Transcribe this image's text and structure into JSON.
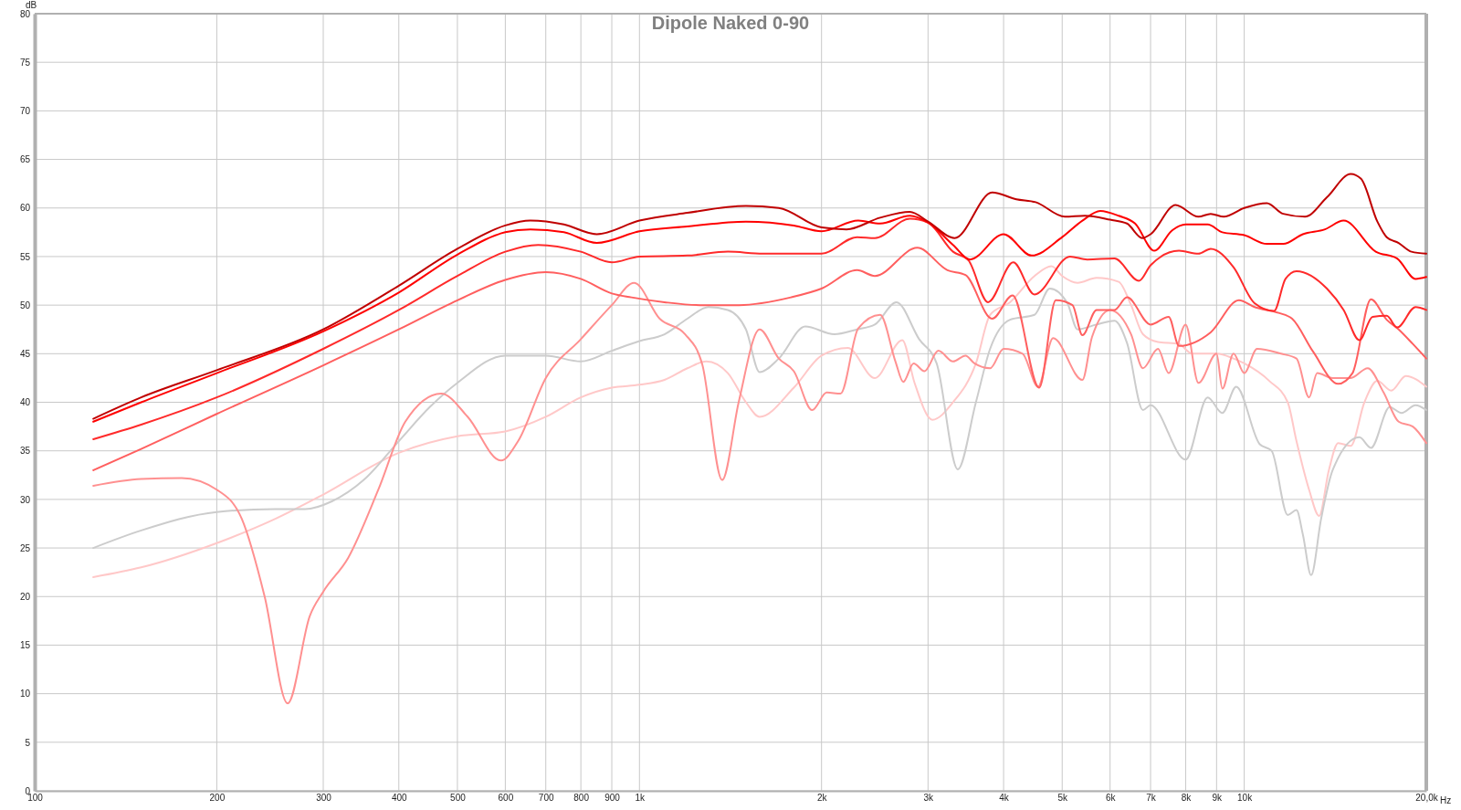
{
  "chart_data": {
    "type": "line",
    "title": "Dipole Naked 0-90",
    "xlabel": "Hz",
    "ylabel": "dB",
    "log": "x",
    "grid": true,
    "marker": "none",
    "line_style": "solid",
    "xlim": [
      100,
      20000
    ],
    "ylim": [
      0,
      80
    ],
    "xticks": [
      100,
      200,
      300,
      400,
      500,
      600,
      700,
      800,
      900,
      {
        "value": 1000,
        "label": "1k"
      },
      {
        "value": 2000,
        "label": "2k"
      },
      {
        "value": 3000,
        "label": "3k"
      },
      {
        "value": 4000,
        "label": "4k"
      },
      {
        "value": 5000,
        "label": "5k"
      },
      {
        "value": 6000,
        "label": "6k"
      },
      {
        "value": 7000,
        "label": "7k"
      },
      {
        "value": 8000,
        "label": "8k"
      },
      {
        "value": 9000,
        "label": "9k"
      },
      {
        "value": 10000,
        "label": "10k"
      },
      {
        "value": 20000,
        "label": "20,0k"
      }
    ],
    "yticks": [
      0,
      5,
      10,
      15,
      20,
      25,
      30,
      35,
      40,
      45,
      50,
      55,
      60,
      65,
      70,
      75,
      80
    ],
    "series": [
      {
        "color": "#c00000",
        "x": [
          125,
          150,
          200,
          300,
          400,
          500,
          600,
          660,
          750,
          850,
          1000,
          1200,
          1500,
          1700,
          2000,
          2200,
          2500,
          2800,
          3000,
          3320,
          3830,
          4200,
          4520,
          5050,
          5450,
          6000,
          6400,
          6780,
          7000,
          7700,
          8400,
          8800,
          9250,
          10000,
          10900,
          11600,
          12600,
          13700,
          15000,
          15600,
          16600,
          17200,
          18000,
          18900,
          20000
        ],
        "values": [
          38.3,
          40.5,
          43.3,
          47.5,
          52,
          55.8,
          58.2,
          58.7,
          58.3,
          57.3,
          58.7,
          59.5,
          60.2,
          60,
          58,
          57.8,
          59,
          59.6,
          58.6,
          56.9,
          61.6,
          60.9,
          60.6,
          59.1,
          59.2,
          58.8,
          58.4,
          56.9,
          57.3,
          60.3,
          59.1,
          59.4,
          59.1,
          60,
          60.5,
          59.4,
          59.1,
          61.1,
          63.5,
          63,
          58.6,
          57,
          56.4,
          55.5,
          55.3
        ]
      },
      {
        "color": "#ff0000",
        "x": [
          125,
          150,
          200,
          300,
          400,
          500,
          600,
          660,
          750,
          850,
          1000,
          1200,
          1500,
          1800,
          2000,
          2300,
          2500,
          2800,
          3000,
          3300,
          3520,
          4000,
          4450,
          5000,
          5400,
          5780,
          6200,
          6600,
          7100,
          7600,
          8000,
          8700,
          9200,
          10000,
          10900,
          11600,
          12500,
          13600,
          14600,
          16500,
          17900,
          19200,
          20000
        ],
        "values": [
          38,
          40,
          43,
          47.3,
          51.3,
          55.2,
          57.5,
          57.8,
          57.5,
          56.4,
          57.6,
          58.1,
          58.6,
          58.2,
          57.6,
          58.7,
          58.4,
          59.2,
          58.5,
          56.2,
          54.7,
          57.3,
          55.1,
          57,
          58.7,
          59.7,
          59.2,
          58.4,
          55.6,
          57.7,
          58.3,
          58.3,
          57.5,
          57.2,
          56.3,
          56.3,
          57.3,
          57.8,
          58.7,
          55.5,
          54.8,
          52.7,
          52.9
        ]
      },
      {
        "color": "#ff2a2a",
        "x": [
          125,
          150,
          200,
          300,
          400,
          500,
          600,
          680,
          800,
          900,
          1000,
          1200,
          1400,
          1600,
          2000,
          2290,
          2450,
          2800,
          3000,
          3300,
          3500,
          3770,
          4150,
          4500,
          5150,
          5500,
          6100,
          6700,
          7000,
          7800,
          8400,
          8800,
          9600,
          10400,
          11200,
          11700,
          12200,
          13700,
          14600,
          15500,
          16300,
          17200,
          17900,
          19200,
          20000
        ],
        "values": [
          36.2,
          37.7,
          40.5,
          45.5,
          49.5,
          53,
          55.5,
          56.2,
          55.5,
          54.4,
          55,
          55.1,
          55.5,
          55.3,
          55.3,
          57,
          56.9,
          58.9,
          58.5,
          55.5,
          54.6,
          50.3,
          54.4,
          51.1,
          55,
          54.7,
          54.8,
          52.5,
          54.1,
          55.6,
          55.3,
          55.8,
          53.9,
          50.2,
          49.4,
          52.7,
          53.5,
          51.7,
          49.5,
          46.4,
          48.8,
          48.9,
          47.7,
          49.8,
          49.5
        ]
      },
      {
        "color": "#ff5f5f",
        "x": [
          125,
          150,
          200,
          300,
          400,
          500,
          600,
          700,
          800,
          900,
          970,
          1100,
          1260,
          1460,
          1780,
          2000,
          2290,
          2450,
          2880,
          3230,
          3460,
          3830,
          4140,
          4580,
          4880,
          5200,
          5400,
          5700,
          6100,
          6400,
          7000,
          7500,
          7800,
          8800,
          9800,
          10400,
          11400,
          12000,
          13000,
          14300,
          15100,
          16200,
          17200,
          18000,
          19000,
          20000
        ],
        "values": [
          33,
          35.2,
          38.8,
          43.8,
          47.5,
          50.5,
          52.6,
          53.4,
          52.7,
          51.2,
          50.8,
          50.3,
          50,
          50,
          50.8,
          51.7,
          53.6,
          53,
          55.9,
          53.6,
          53.1,
          48.6,
          51,
          41.5,
          50.5,
          50,
          46.9,
          49.5,
          49.5,
          50.8,
          48,
          48.8,
          45.8,
          47.2,
          50.5,
          49.8,
          49.2,
          48.6,
          45.2,
          41.9,
          43,
          50.6,
          48.5,
          47.5,
          46,
          44.5
        ]
      },
      {
        "color": "#ff9090",
        "x": [
          125,
          150,
          175,
          200,
          220,
          240,
          262,
          285,
          300,
          330,
          370,
          410,
          470,
          520,
          590,
          630,
          700,
          800,
          900,
          980,
          1080,
          1190,
          1270,
          1370,
          1460,
          1580,
          1700,
          1800,
          1930,
          2040,
          2150,
          2300,
          2500,
          2650,
          2730,
          2840,
          2960,
          3120,
          3300,
          3460,
          3580,
          3800,
          4000,
          4300,
          4560,
          4830,
          5400,
          5600,
          6000,
          6500,
          6800,
          7200,
          7500,
          8000,
          8400,
          9000,
          9200,
          9600,
          10000,
          10500,
          11500,
          12200,
          12800,
          13200,
          14000,
          15000,
          16000,
          17000,
          18000,
          19000,
          20000
        ],
        "values": [
          31.4,
          32.1,
          32.2,
          31,
          28,
          20,
          9,
          18,
          20.5,
          24,
          31,
          38,
          40.9,
          38.5,
          34,
          36,
          42.5,
          46.5,
          50,
          52.3,
          48.6,
          47,
          43.9,
          32,
          40.1,
          47.5,
          44.5,
          43.2,
          39.2,
          41,
          40.9,
          47.6,
          49,
          44.2,
          42.1,
          44,
          43.2,
          45.3,
          44.2,
          44.8,
          44,
          43.5,
          45.5,
          45,
          41.6,
          46.6,
          42.3,
          46.7,
          49.5,
          47,
          43.5,
          45.5,
          43,
          48,
          42,
          45,
          41.4,
          45,
          43,
          45.5,
          45,
          44.5,
          40.5,
          43,
          42.5,
          42.5,
          43.5,
          41,
          38,
          37.5,
          35.8
        ]
      },
      {
        "color": "#cccccc",
        "x": [
          125,
          150,
          200,
          250,
          280,
          310,
          350,
          400,
          450,
          500,
          600,
          700,
          800,
          900,
          1000,
          1100,
          1200,
          1300,
          1400,
          1500,
          1580,
          1700,
          1880,
          2100,
          2290,
          2450,
          2660,
          2900,
          3100,
          3360,
          3600,
          3800,
          4100,
          4500,
          4770,
          5100,
          5300,
          5700,
          6100,
          6400,
          6800,
          7000,
          8000,
          8700,
          9200,
          9700,
          10600,
          11100,
          11800,
          12200,
          12500,
          12900,
          13400,
          14000,
          15500,
          16200,
          17400,
          18200,
          19200,
          20000
        ],
        "values": [
          25,
          26.8,
          28.7,
          29,
          29,
          29.8,
          32,
          36,
          39.5,
          42,
          44.8,
          44.8,
          44.2,
          45.3,
          46.3,
          47,
          48.6,
          49.8,
          49.5,
          47.5,
          43.1,
          44.5,
          47.8,
          47,
          47.5,
          48,
          50.3,
          46.5,
          44,
          33.1,
          40,
          45.5,
          48.5,
          49,
          51.7,
          50.2,
          47.5,
          48,
          48.4,
          46.1,
          39.2,
          39.7,
          34.1,
          40.5,
          38.9,
          41.6,
          35.7,
          35,
          28.4,
          28.9,
          26.4,
          22.2,
          28,
          33,
          36.4,
          35.3,
          39.5,
          38.9,
          39.7,
          39.2
        ]
      },
      {
        "color": "#ffc8c8",
        "x": [
          125,
          150,
          200,
          250,
          300,
          400,
          500,
          600,
          700,
          800,
          900,
          1000,
          1100,
          1200,
          1290,
          1400,
          1500,
          1580,
          1800,
          2000,
          2210,
          2450,
          2720,
          2850,
          3050,
          3300,
          3600,
          3800,
          4100,
          4500,
          4800,
          5000,
          5300,
          5700,
          6200,
          6500,
          6800,
          7200,
          7800,
          8200,
          9000,
          9600,
          10000,
          11000,
          11800,
          12200,
          12800,
          13300,
          13800,
          14300,
          15000,
          15800,
          16600,
          17500,
          18500,
          20000
        ],
        "values": [
          22,
          23,
          25.5,
          28,
          30.5,
          34.8,
          36.5,
          37,
          38.5,
          40.5,
          41.5,
          41.8,
          42.3,
          43.5,
          44.2,
          43,
          40,
          38.5,
          41.5,
          44.8,
          45.6,
          42.5,
          46.4,
          42,
          38.2,
          40,
          44,
          49,
          50.3,
          53,
          54,
          53,
          52.3,
          52.8,
          52.4,
          50,
          47,
          46.2,
          46,
          45,
          45,
          44.5,
          44,
          42.2,
          40,
          36,
          31,
          28.3,
          33,
          35.8,
          35.5,
          40,
          42.2,
          41.2,
          42.7,
          41.6
        ]
      }
    ]
  }
}
